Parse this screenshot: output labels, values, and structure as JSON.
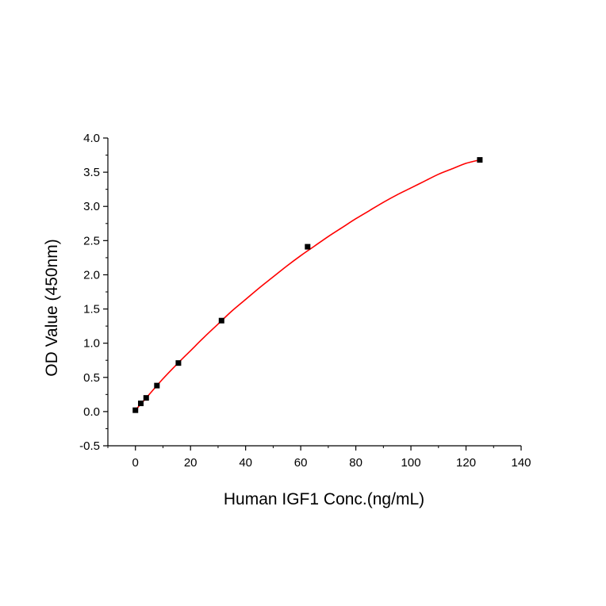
{
  "chart_data": {
    "type": "scatter",
    "title": "",
    "xlabel": "Human IGF1 Conc.(ng/mL)",
    "ylabel": "OD Value (450nm)",
    "xlim": [
      -10,
      140
    ],
    "ylim": [
      -0.5,
      4.0
    ],
    "xticks": [
      0,
      20,
      40,
      60,
      80,
      100,
      120,
      140
    ],
    "yticks": [
      -0.5,
      0.0,
      0.5,
      1.0,
      1.5,
      2.0,
      2.5,
      3.0,
      3.5,
      4.0
    ],
    "xtick_labels": [
      "0",
      "20",
      "40",
      "60",
      "80",
      "100",
      "120",
      "140"
    ],
    "ytick_labels": [
      "-0.5",
      "0.0",
      "0.5",
      "1.0",
      "1.5",
      "2.0",
      "2.5",
      "3.0",
      "3.5",
      "4.0"
    ],
    "grid": false,
    "legend": "none",
    "series": [
      {
        "kind": "points",
        "marker": "square",
        "color": "#000000",
        "x": [
          0,
          1.95,
          3.9,
          7.8,
          15.6,
          31.25,
          62.5,
          125
        ],
        "y": [
          0.02,
          0.12,
          0.2,
          0.38,
          0.71,
          1.33,
          2.41,
          3.68
        ]
      },
      {
        "kind": "fit-curve",
        "color": "#ff0000",
        "x": [
          0,
          5,
          10,
          15,
          20,
          25,
          30,
          35,
          40,
          45,
          50,
          55,
          60,
          65,
          70,
          75,
          80,
          85,
          90,
          95,
          100,
          105,
          110,
          115,
          120,
          125
        ],
        "y": [
          0.02,
          0.25,
          0.48,
          0.69,
          0.89,
          1.09,
          1.28,
          1.47,
          1.64,
          1.81,
          1.97,
          2.13,
          2.28,
          2.42,
          2.56,
          2.69,
          2.82,
          2.94,
          3.06,
          3.17,
          3.27,
          3.37,
          3.47,
          3.55,
          3.63,
          3.68
        ]
      }
    ]
  }
}
